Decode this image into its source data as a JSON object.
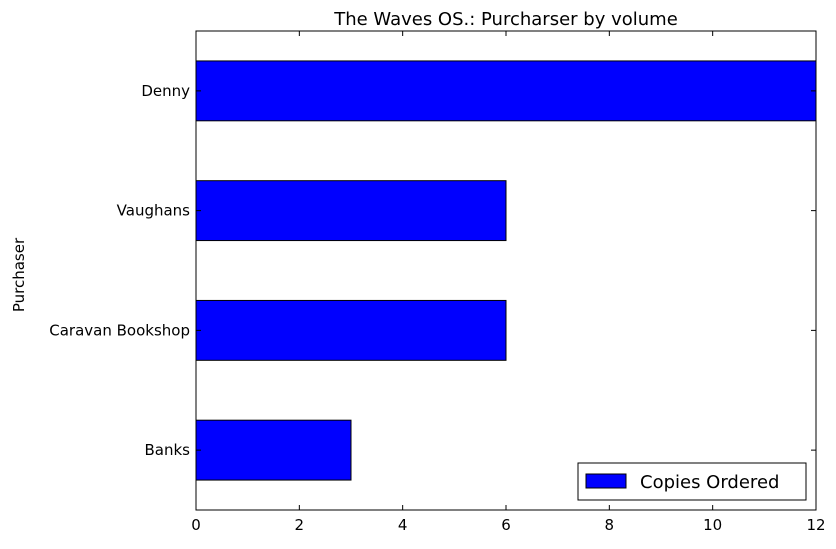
{
  "chart_data": {
    "type": "bar",
    "orientation": "horizontal",
    "title": "The Waves OS.: Purcharser by volume",
    "xlabel": "",
    "ylabel": "Purchaser",
    "categories": [
      "Banks",
      "Caravan Bookshop",
      "Vaughans",
      "Denny"
    ],
    "series": [
      {
        "name": "Copies Ordered",
        "values": [
          3,
          6,
          6,
          12
        ],
        "color": "#0000ff"
      }
    ],
    "xlim": [
      0,
      12
    ],
    "xticks": [
      0,
      2,
      4,
      6,
      8,
      10,
      12
    ],
    "grid": false,
    "legend": {
      "position": "lower-right",
      "entries": [
        "Copies Ordered"
      ]
    }
  }
}
